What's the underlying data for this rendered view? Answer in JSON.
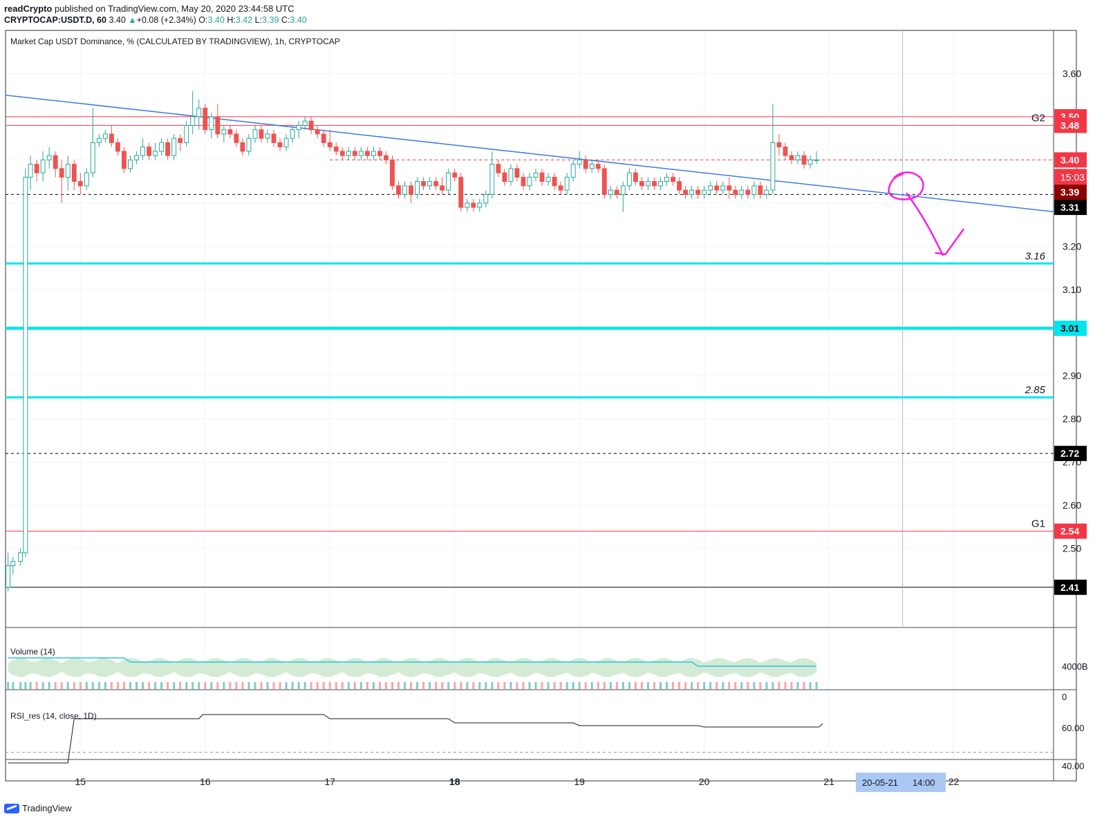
{
  "header": {
    "author": "readCrypto",
    "published": "published on TradingView.com, May 20, 2020 23:44:58 UTC",
    "symbol": "CRYPTOCAP:USDT.D, 60",
    "last": "3.40",
    "change_arrow": "▲",
    "change": "+0.08 (+2.34%)",
    "open_label": "O:",
    "open": "3.40",
    "high_label": "H:",
    "high": "3.42",
    "low_label": "L:",
    "low": "3.39",
    "close_label": "C:",
    "close": "3.40"
  },
  "main_pane": {
    "title": "Market Cap USDT Dominance, % (CALCULATED BY TRADINGVIEW), 1h, CRYPTOCAP"
  },
  "volume_pane": {
    "title": "Volume (14)",
    "axis_labels": [
      "4000B",
      "0"
    ]
  },
  "rsi_pane": {
    "title": "RSI_res (14, close, 1D)",
    "axis_labels": [
      "60.00",
      "40.00"
    ]
  },
  "time_axis": {
    "labels": [
      "15",
      "16",
      "17",
      "18",
      "19",
      "20",
      "21",
      "22"
    ],
    "bold_labels": [
      "18"
    ],
    "cursor_date": "20-05-21",
    "cursor_time": "14:00"
  },
  "footer": {
    "brand": "TradingView"
  },
  "colors": {
    "up": "#26a69a",
    "down": "#ef5350",
    "trendline": "#3d7be0",
    "cyan": "#00e5ee",
    "magenta": "#ff1ee0",
    "red_line": "#f23645",
    "tag_red": "#f23645",
    "tag_darkred": "#8b0000",
    "tag_black": "#000000",
    "tag_cyan": "#00e5ee",
    "cursor": "#9bbbe8"
  },
  "chart_data": {
    "type": "candlestick",
    "y_axis": {
      "range": [
        2.32,
        3.7
      ],
      "tick_labels": [
        "3.60",
        "3.50",
        "3.40",
        "3.30",
        "3.20",
        "3.10",
        "3.00",
        "2.90",
        "2.80",
        "2.70",
        "2.60",
        "2.50"
      ]
    },
    "x_axis": {
      "range_days": [
        14.4,
        22.8
      ],
      "tick_days": [
        15,
        16,
        17,
        18,
        19,
        20,
        21,
        22
      ]
    },
    "price_tags": [
      {
        "text": "3.50",
        "price": 3.5,
        "style": "red"
      },
      {
        "text": "3.48",
        "price": 3.48,
        "style": "red"
      },
      {
        "text": "3.40",
        "price": 3.4,
        "style": "red"
      },
      {
        "text": "15:03",
        "price": 3.36,
        "style": "countdown"
      },
      {
        "text": "3.39",
        "price": 3.325,
        "style": "darkred"
      },
      {
        "text": "3.31",
        "price": 3.29,
        "style": "black"
      },
      {
        "text": "3.01",
        "price": 3.01,
        "style": "cyan"
      },
      {
        "text": "2.72",
        "price": 2.72,
        "style": "black"
      },
      {
        "text": "2.54",
        "price": 2.54,
        "style": "red"
      },
      {
        "text": "2.41",
        "price": 2.41,
        "style": "black"
      }
    ],
    "horizontal_lines": [
      {
        "price": 3.5,
        "style": "red",
        "label": ""
      },
      {
        "price": 3.48,
        "style": "red",
        "label": "G2"
      },
      {
        "price": 3.4,
        "style": "red-dashed",
        "label": ""
      },
      {
        "price": 3.32,
        "style": "black-dashed",
        "label": ""
      },
      {
        "price": 3.16,
        "style": "cyan",
        "label": "3.16"
      },
      {
        "price": 3.01,
        "style": "cyan-thick",
        "label": ""
      },
      {
        "price": 2.85,
        "style": "cyan",
        "label": "2.85"
      },
      {
        "price": 2.72,
        "style": "black-dashed",
        "label": ""
      },
      {
        "price": 2.54,
        "style": "red",
        "label": "G1"
      },
      {
        "price": 2.41,
        "style": "black",
        "label": ""
      }
    ],
    "trendline": {
      "from": [
        14.4,
        3.55
      ],
      "to": [
        22.8,
        3.28
      ]
    },
    "candles": [
      [
        14.42,
        2.41,
        2.46,
        2.49,
        2.4
      ],
      [
        14.46,
        2.46,
        2.47,
        2.48,
        2.44
      ],
      [
        14.52,
        2.47,
        2.49,
        2.5,
        2.46
      ],
      [
        14.56,
        2.49,
        3.36,
        3.38,
        2.48
      ],
      [
        14.6,
        3.36,
        3.39,
        3.41,
        3.33
      ],
      [
        14.65,
        3.39,
        3.37,
        3.4,
        3.35
      ],
      [
        14.7,
        3.37,
        3.4,
        3.42,
        3.35
      ],
      [
        14.75,
        3.4,
        3.41,
        3.43,
        3.38
      ],
      [
        14.8,
        3.41,
        3.38,
        3.42,
        3.36
      ],
      [
        14.85,
        3.38,
        3.36,
        3.4,
        3.3
      ],
      [
        14.9,
        3.36,
        3.39,
        3.41,
        3.33
      ],
      [
        14.95,
        3.39,
        3.35,
        3.4,
        3.33
      ],
      [
        15.0,
        3.35,
        3.34,
        3.37,
        3.32
      ],
      [
        15.05,
        3.34,
        3.37,
        3.38,
        3.33
      ],
      [
        15.1,
        3.37,
        3.44,
        3.52,
        3.36
      ],
      [
        15.15,
        3.44,
        3.45,
        3.46,
        3.43
      ],
      [
        15.2,
        3.45,
        3.46,
        3.47,
        3.44
      ],
      [
        15.25,
        3.46,
        3.44,
        3.48,
        3.43
      ],
      [
        15.3,
        3.44,
        3.42,
        3.45,
        3.41
      ],
      [
        15.35,
        3.42,
        3.38,
        3.43,
        3.37
      ],
      [
        15.4,
        3.38,
        3.4,
        3.41,
        3.37
      ],
      [
        15.45,
        3.4,
        3.41,
        3.42,
        3.39
      ],
      [
        15.5,
        3.41,
        3.43,
        3.45,
        3.4
      ],
      [
        15.55,
        3.43,
        3.41,
        3.44,
        3.4
      ],
      [
        15.6,
        3.41,
        3.42,
        3.44,
        3.4
      ],
      [
        15.65,
        3.42,
        3.44,
        3.45,
        3.41
      ],
      [
        15.7,
        3.44,
        3.41,
        3.45,
        3.4
      ],
      [
        15.75,
        3.41,
        3.45,
        3.46,
        3.4
      ],
      [
        15.8,
        3.45,
        3.44,
        3.46,
        3.42
      ],
      [
        15.85,
        3.44,
        3.48,
        3.49,
        3.43
      ],
      [
        15.9,
        3.48,
        3.5,
        3.56,
        3.46
      ],
      [
        15.95,
        3.5,
        3.52,
        3.54,
        3.47
      ],
      [
        16.0,
        3.52,
        3.47,
        3.53,
        3.46
      ],
      [
        16.05,
        3.47,
        3.5,
        3.51,
        3.45
      ],
      [
        16.1,
        3.5,
        3.46,
        3.53,
        3.45
      ],
      [
        16.15,
        3.46,
        3.47,
        3.48,
        3.44
      ],
      [
        16.2,
        3.47,
        3.46,
        3.48,
        3.45
      ],
      [
        16.25,
        3.46,
        3.44,
        3.47,
        3.43
      ],
      [
        16.3,
        3.44,
        3.42,
        3.45,
        3.41
      ],
      [
        16.35,
        3.42,
        3.45,
        3.46,
        3.41
      ],
      [
        16.4,
        3.45,
        3.47,
        3.48,
        3.44
      ],
      [
        16.45,
        3.47,
        3.45,
        3.48,
        3.44
      ],
      [
        16.5,
        3.45,
        3.46,
        3.47,
        3.44
      ],
      [
        16.55,
        3.46,
        3.44,
        3.47,
        3.43
      ],
      [
        16.6,
        3.44,
        3.43,
        3.45,
        3.42
      ],
      [
        16.65,
        3.43,
        3.45,
        3.46,
        3.42
      ],
      [
        16.7,
        3.45,
        3.47,
        3.48,
        3.44
      ],
      [
        16.75,
        3.47,
        3.48,
        3.49,
        3.45
      ],
      [
        16.8,
        3.48,
        3.49,
        3.5,
        3.47
      ],
      [
        16.85,
        3.49,
        3.47,
        3.5,
        3.46
      ],
      [
        16.9,
        3.47,
        3.46,
        3.48,
        3.45
      ],
      [
        16.95,
        3.46,
        3.44,
        3.47,
        3.43
      ],
      [
        17.0,
        3.44,
        3.43,
        3.47,
        3.42
      ],
      [
        17.05,
        3.43,
        3.42,
        3.44,
        3.41
      ],
      [
        17.1,
        3.42,
        3.41,
        3.43,
        3.4
      ],
      [
        17.15,
        3.41,
        3.42,
        3.43,
        3.4
      ],
      [
        17.2,
        3.42,
        3.41,
        3.43,
        3.4
      ],
      [
        17.25,
        3.41,
        3.42,
        3.43,
        3.4
      ],
      [
        17.3,
        3.42,
        3.41,
        3.43,
        3.4
      ],
      [
        17.35,
        3.41,
        3.42,
        3.43,
        3.4
      ],
      [
        17.4,
        3.42,
        3.41,
        3.43,
        3.4
      ],
      [
        17.45,
        3.41,
        3.4,
        3.42,
        3.39
      ],
      [
        17.5,
        3.4,
        3.34,
        3.41,
        3.33
      ],
      [
        17.55,
        3.34,
        3.32,
        3.35,
        3.31
      ],
      [
        17.6,
        3.32,
        3.34,
        3.35,
        3.31
      ],
      [
        17.65,
        3.34,
        3.32,
        3.35,
        3.3
      ],
      [
        17.7,
        3.32,
        3.35,
        3.36,
        3.31
      ],
      [
        17.75,
        3.35,
        3.34,
        3.36,
        3.33
      ],
      [
        17.8,
        3.34,
        3.35,
        3.36,
        3.33
      ],
      [
        17.85,
        3.35,
        3.34,
        3.36,
        3.33
      ],
      [
        17.9,
        3.34,
        3.33,
        3.36,
        3.32
      ],
      [
        17.95,
        3.33,
        3.37,
        3.38,
        3.32
      ],
      [
        18.0,
        3.37,
        3.36,
        3.38,
        3.35
      ],
      [
        18.05,
        3.36,
        3.29,
        3.37,
        3.28
      ],
      [
        18.1,
        3.29,
        3.3,
        3.31,
        3.28
      ],
      [
        18.15,
        3.3,
        3.29,
        3.31,
        3.28
      ],
      [
        18.2,
        3.29,
        3.3,
        3.31,
        3.28
      ],
      [
        18.25,
        3.3,
        3.32,
        3.33,
        3.29
      ],
      [
        18.3,
        3.32,
        3.39,
        3.42,
        3.31
      ],
      [
        18.35,
        3.39,
        3.37,
        3.4,
        3.36
      ],
      [
        18.4,
        3.37,
        3.35,
        3.38,
        3.34
      ],
      [
        18.45,
        3.35,
        3.38,
        3.39,
        3.34
      ],
      [
        18.5,
        3.38,
        3.36,
        3.39,
        3.35
      ],
      [
        18.55,
        3.36,
        3.34,
        3.37,
        3.33
      ],
      [
        18.6,
        3.34,
        3.36,
        3.37,
        3.33
      ],
      [
        18.65,
        3.36,
        3.37,
        3.38,
        3.35
      ],
      [
        18.7,
        3.37,
        3.35,
        3.38,
        3.34
      ],
      [
        18.75,
        3.35,
        3.36,
        3.37,
        3.34
      ],
      [
        18.8,
        3.36,
        3.34,
        3.37,
        3.33
      ],
      [
        18.85,
        3.34,
        3.33,
        3.35,
        3.32
      ],
      [
        18.9,
        3.33,
        3.36,
        3.37,
        3.32
      ],
      [
        18.95,
        3.36,
        3.39,
        3.4,
        3.35
      ],
      [
        19.0,
        3.39,
        3.4,
        3.42,
        3.38
      ],
      [
        19.05,
        3.4,
        3.38,
        3.41,
        3.37
      ],
      [
        19.1,
        3.38,
        3.39,
        3.4,
        3.37
      ],
      [
        19.15,
        3.39,
        3.38,
        3.4,
        3.37
      ],
      [
        19.2,
        3.38,
        3.32,
        3.39,
        3.31
      ],
      [
        19.25,
        3.32,
        3.33,
        3.34,
        3.31
      ],
      [
        19.3,
        3.33,
        3.32,
        3.34,
        3.31
      ],
      [
        19.35,
        3.32,
        3.34,
        3.35,
        3.28
      ],
      [
        19.4,
        3.34,
        3.37,
        3.38,
        3.33
      ],
      [
        19.45,
        3.37,
        3.35,
        3.38,
        3.34
      ],
      [
        19.5,
        3.35,
        3.34,
        3.36,
        3.33
      ],
      [
        19.55,
        3.34,
        3.35,
        3.36,
        3.33
      ],
      [
        19.6,
        3.35,
        3.34,
        3.36,
        3.33
      ],
      [
        19.65,
        3.34,
        3.35,
        3.36,
        3.33
      ],
      [
        19.7,
        3.35,
        3.36,
        3.37,
        3.34
      ],
      [
        19.75,
        3.36,
        3.35,
        3.37,
        3.34
      ],
      [
        19.8,
        3.35,
        3.33,
        3.36,
        3.32
      ],
      [
        19.85,
        3.33,
        3.32,
        3.34,
        3.31
      ],
      [
        19.9,
        3.32,
        3.33,
        3.34,
        3.31
      ],
      [
        19.95,
        3.33,
        3.32,
        3.34,
        3.31
      ],
      [
        20.0,
        3.32,
        3.33,
        3.34,
        3.31
      ],
      [
        20.05,
        3.33,
        3.34,
        3.35,
        3.32
      ],
      [
        20.1,
        3.34,
        3.33,
        3.35,
        3.32
      ],
      [
        20.15,
        3.33,
        3.34,
        3.35,
        3.32
      ],
      [
        20.2,
        3.34,
        3.33,
        3.36,
        3.31
      ],
      [
        20.25,
        3.33,
        3.32,
        3.34,
        3.31
      ],
      [
        20.3,
        3.32,
        3.33,
        3.34,
        3.31
      ],
      [
        20.35,
        3.33,
        3.32,
        3.34,
        3.31
      ],
      [
        20.4,
        3.32,
        3.34,
        3.35,
        3.31
      ],
      [
        20.45,
        3.34,
        3.32,
        3.35,
        3.31
      ],
      [
        20.5,
        3.32,
        3.33,
        3.34,
        3.31
      ],
      [
        20.55,
        3.33,
        3.44,
        3.53,
        3.32
      ],
      [
        20.6,
        3.44,
        3.43,
        3.46,
        3.41
      ],
      [
        20.65,
        3.43,
        3.41,
        3.44,
        3.4
      ],
      [
        20.7,
        3.41,
        3.4,
        3.42,
        3.39
      ],
      [
        20.75,
        3.4,
        3.41,
        3.42,
        3.39
      ],
      [
        20.8,
        3.41,
        3.39,
        3.42,
        3.38
      ],
      [
        20.85,
        3.39,
        3.4,
        3.41,
        3.38
      ],
      [
        20.9,
        3.4,
        3.4,
        3.42,
        3.39
      ]
    ]
  }
}
